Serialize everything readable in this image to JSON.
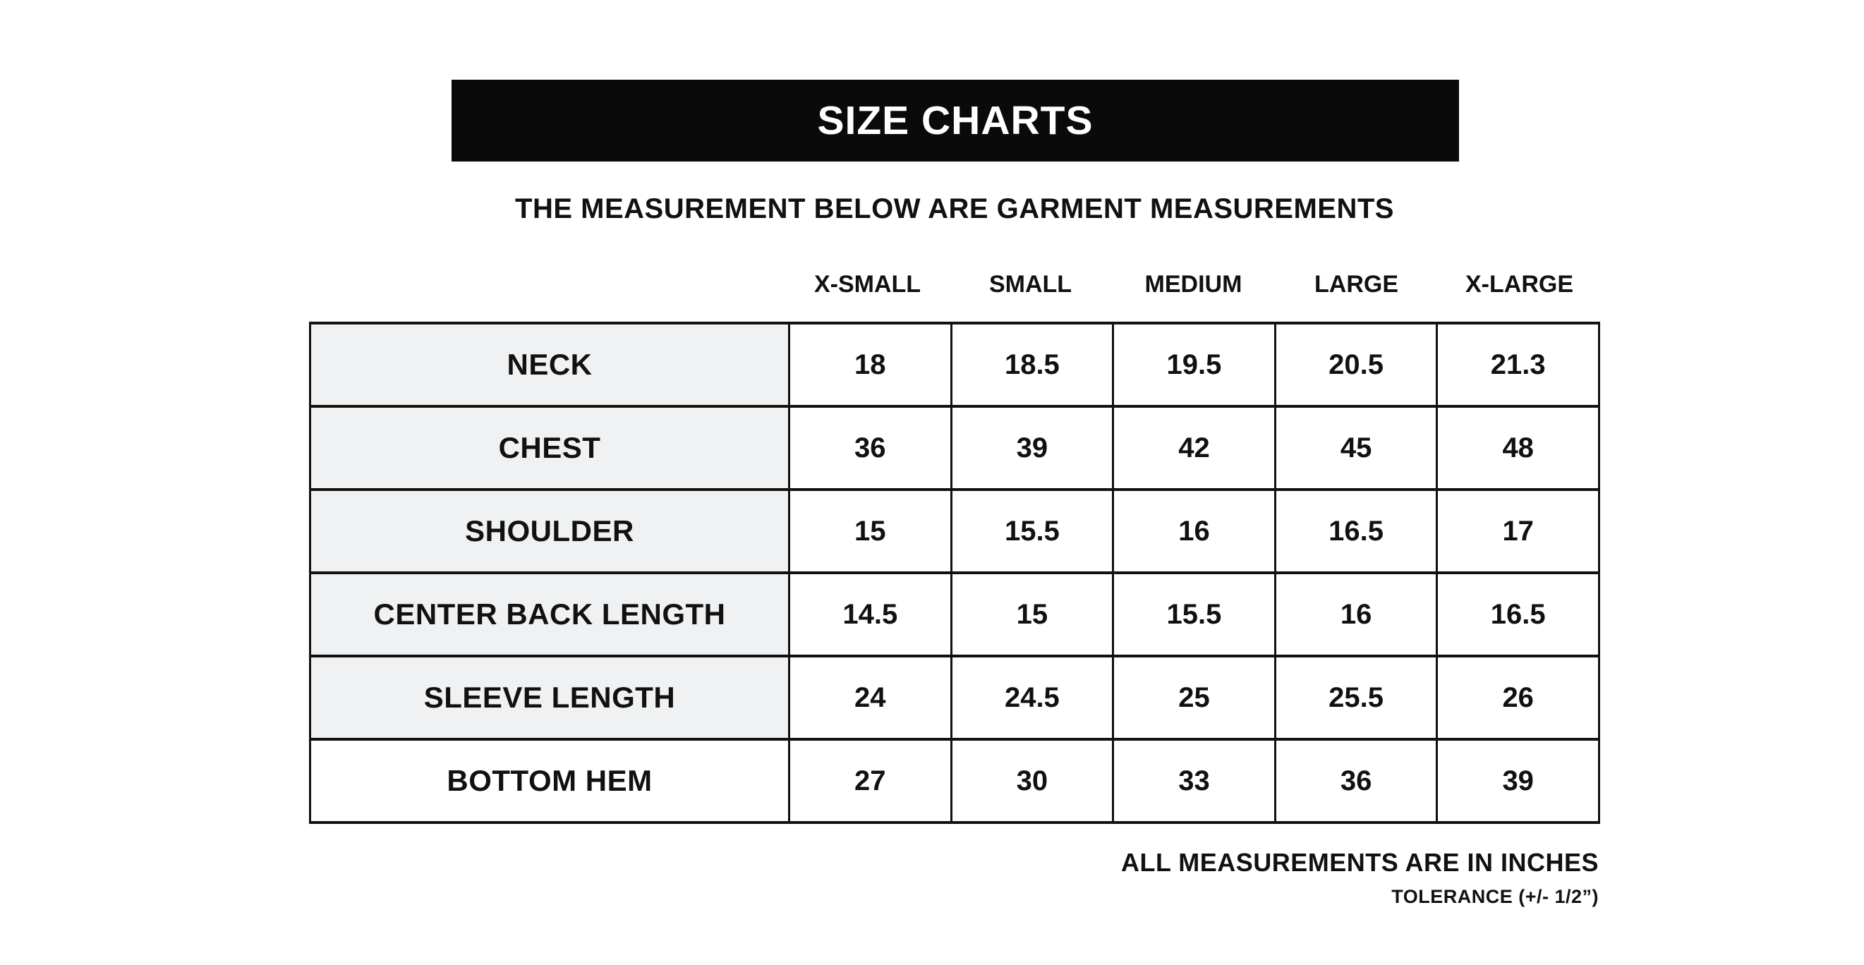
{
  "chart_data": {
    "type": "table",
    "title": "SIZE CHARTS",
    "subtitle": "THE MEASUREMENT BELOW ARE GARMENT MEASUREMENTS",
    "size_headers": [
      "X-SMALL",
      "SMALL",
      "MEDIUM",
      "LARGE",
      "X-LARGE"
    ],
    "rows": [
      {
        "label": "NECK",
        "values": [
          "18",
          "18.5",
          "19.5",
          "20.5",
          "21.3"
        ]
      },
      {
        "label": "CHEST",
        "values": [
          "36",
          "39",
          "42",
          "45",
          "48"
        ]
      },
      {
        "label": "SHOULDER",
        "values": [
          "15",
          "15.5",
          "16",
          "16.5",
          "17"
        ]
      },
      {
        "label": "CENTER BACK LENGTH",
        "values": [
          "14.5",
          "15",
          "15.5",
          "16",
          "16.5"
        ]
      },
      {
        "label": "SLEEVE LENGTH",
        "values": [
          "24",
          "24.5",
          "25",
          "25.5",
          "26"
        ]
      },
      {
        "label": "BOTTOM HEM",
        "values": [
          "27",
          "30",
          "33",
          "36",
          "39"
        ]
      }
    ],
    "units": "inches",
    "footer": {
      "note": "ALL MEASUREMENTS ARE IN INCHES",
      "tolerance": "TOLERANCE (+/- 1/2”)"
    }
  },
  "colors": {
    "banner_bg": "#0a0a0a",
    "banner_text": "#ffffff",
    "label_cell_bg": "#eff1f2",
    "border": "#111111",
    "text": "#111111"
  }
}
